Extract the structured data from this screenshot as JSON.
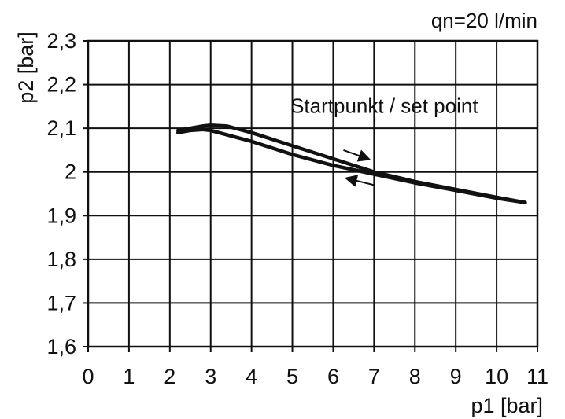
{
  "chart_data": {
    "type": "line",
    "annotation_top": "qn=20 l/min",
    "xlabel": "p1 [bar]",
    "ylabel": "p2 [bar]",
    "xlim": [
      0,
      11
    ],
    "ylim": [
      1.6,
      2.3
    ],
    "x_ticks": [
      0,
      1,
      2,
      3,
      4,
      5,
      6,
      7,
      8,
      9,
      10,
      11
    ],
    "x_tick_labels": [
      "0",
      "1",
      "2",
      "3",
      "4",
      "5",
      "6",
      "7",
      "8",
      "9",
      "10",
      "11"
    ],
    "y_ticks": [
      1.6,
      1.7,
      1.8,
      1.9,
      2.0,
      2.1,
      2.2,
      2.3
    ],
    "y_tick_labels": [
      "1,6",
      "1,7",
      "1,8",
      "1,9",
      "2",
      "2,1",
      "2,2",
      "2,3"
    ],
    "grid": true,
    "series": [
      {
        "x": [
          2.2,
          2.5,
          2.8,
          3.0,
          3.4,
          4.0,
          5.0,
          6.0,
          7.0,
          8.0,
          9.0,
          10.0,
          10.7
        ],
        "y": [
          2.095,
          2.1,
          2.105,
          2.107,
          2.105,
          2.09,
          2.06,
          2.03,
          2.0,
          1.978,
          1.96,
          1.942,
          1.93
        ]
      },
      {
        "x": [
          2.2,
          2.5,
          2.8,
          3.0,
          4.0,
          5.0,
          6.0,
          7.0,
          8.0,
          9.0,
          10.0,
          10.7
        ],
        "y": [
          2.09,
          2.095,
          2.097,
          2.095,
          2.07,
          2.04,
          2.015,
          1.995,
          1.975,
          1.958,
          1.94,
          1.93
        ]
      }
    ],
    "annotations": [
      {
        "text": "Startpunkt / set point",
        "point": [
          7.0,
          2.0
        ],
        "label_anchor": [
          7.25,
          2.135
        ]
      }
    ],
    "arrows": [
      {
        "from": [
          6.25,
          2.05
        ],
        "to": [
          6.85,
          2.03
        ]
      },
      {
        "from": [
          7.0,
          1.97
        ],
        "to": [
          6.35,
          1.985
        ]
      }
    ]
  }
}
